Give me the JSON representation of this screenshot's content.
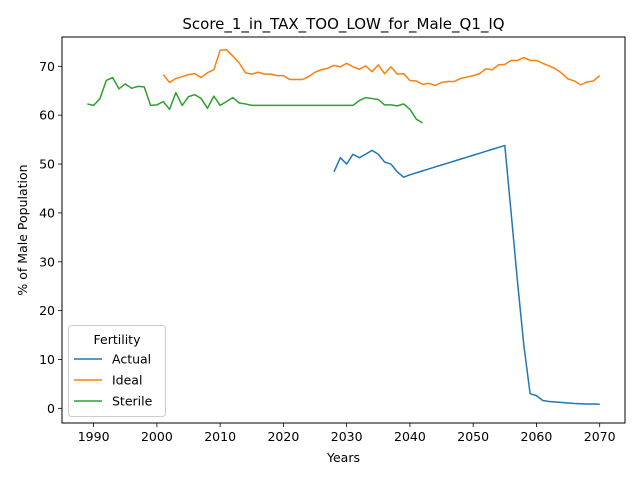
{
  "chart_data": {
    "type": "line",
    "title": "Score_1_in_TAX_TOO_LOW_for_Male_Q1_IQ",
    "xlabel": "Years",
    "ylabel": "% of Male Population",
    "xlim": [
      1985,
      2074
    ],
    "ylim": [
      -3,
      76
    ],
    "xticks": [
      1990,
      2000,
      2010,
      2020,
      2030,
      2040,
      2050,
      2060,
      2070
    ],
    "yticks": [
      0,
      10,
      20,
      30,
      40,
      50,
      60,
      70
    ],
    "legend": {
      "title": "Fertility",
      "position": "lower-left"
    },
    "series": [
      {
        "name": "Actual",
        "color": "#1f77b4",
        "x": [
          2028,
          2029,
          2030,
          2031,
          2032,
          2033,
          2034,
          2035,
          2036,
          2037,
          2038,
          2039,
          2040,
          2041,
          2042,
          2043,
          2044,
          2045,
          2046,
          2047,
          2048,
          2049,
          2050,
          2051,
          2052,
          2053,
          2054,
          2055,
          2056,
          2057,
          2058,
          2059,
          2060,
          2061,
          2062,
          2063,
          2064,
          2065,
          2066,
          2067,
          2068,
          2069,
          2070
        ],
        "values": [
          48.4,
          51.3,
          50.0,
          52.0,
          51.3,
          52.0,
          52.8,
          52.0,
          50.4,
          50.0,
          48.4,
          47.3,
          47.8,
          48.2,
          48.6,
          49.0,
          49.4,
          49.8,
          50.2,
          50.6,
          51.0,
          51.4,
          51.8,
          52.2,
          52.6,
          53.0,
          53.4,
          53.8,
          40.0,
          26.0,
          13.0,
          3.0,
          2.6,
          1.6,
          1.4,
          1.3,
          1.2,
          1.1,
          1.0,
          0.95,
          0.9,
          0.88,
          0.85
        ]
      },
      {
        "name": "Ideal",
        "color": "#ff7f0e",
        "x": [
          2001,
          2002,
          2003,
          2004,
          2005,
          2006,
          2007,
          2008,
          2009,
          2010,
          2011,
          2012,
          2013,
          2014,
          2015,
          2016,
          2017,
          2018,
          2019,
          2020,
          2021,
          2022,
          2023,
          2024,
          2025,
          2026,
          2027,
          2028,
          2029,
          2030,
          2031,
          2032,
          2033,
          2034,
          2035,
          2036,
          2037,
          2038,
          2039,
          2040,
          2041,
          2042,
          2043,
          2044,
          2045,
          2046,
          2047,
          2048,
          2049,
          2050,
          2051,
          2052,
          2053,
          2054,
          2055,
          2056,
          2057,
          2058,
          2059,
          2060,
          2061,
          2062,
          2063,
          2064,
          2065,
          2066,
          2067,
          2068,
          2069,
          2070
        ],
        "values": [
          68.3,
          66.7,
          67.5,
          67.9,
          68.3,
          68.5,
          67.7,
          68.7,
          69.3,
          73.3,
          73.4,
          72.1,
          70.7,
          68.7,
          68.4,
          68.8,
          68.4,
          68.4,
          68.1,
          68.1,
          67.3,
          67.3,
          67.3,
          67.9,
          68.8,
          69.3,
          69.6,
          70.2,
          69.9,
          70.6,
          69.9,
          69.4,
          70.1,
          68.9,
          70.3,
          68.5,
          69.9,
          68.4,
          68.5,
          67.1,
          67.0,
          66.3,
          66.5,
          66.1,
          66.7,
          66.9,
          66.9,
          67.5,
          67.8,
          68.1,
          68.5,
          69.5,
          69.3,
          70.3,
          70.4,
          71.2,
          71.2,
          71.8,
          71.2,
          71.2,
          70.6,
          70.1,
          69.5,
          68.6,
          67.4,
          67.0,
          66.2,
          66.8,
          67.0,
          68.1
        ]
      },
      {
        "name": "Sterile",
        "color": "#2ca02c",
        "x": [
          1989,
          1990,
          1991,
          1992,
          1993,
          1994,
          1995,
          1996,
          1997,
          1998,
          1999,
          2000,
          2001,
          2002,
          2003,
          2004,
          2005,
          2006,
          2007,
          2008,
          2009,
          2010,
          2011,
          2012,
          2013,
          2014,
          2015,
          2016,
          2017,
          2018,
          2019,
          2020,
          2021,
          2022,
          2023,
          2024,
          2025,
          2026,
          2027,
          2028,
          2029,
          2030,
          2031,
          2032,
          2033,
          2034,
          2035,
          2036,
          2037,
          2038,
          2039,
          2040,
          2041,
          2042
        ],
        "values": [
          62.3,
          62.0,
          63.4,
          67.1,
          67.7,
          65.4,
          66.4,
          65.5,
          65.9,
          65.8,
          62.0,
          62.1,
          62.8,
          61.2,
          64.6,
          62.0,
          63.8,
          64.2,
          63.4,
          61.4,
          63.9,
          62.0,
          62.8,
          63.6,
          62.5,
          62.3,
          62.0,
          62.0,
          62.0,
          62.0,
          62.0,
          62.0,
          62.0,
          62.0,
          62.0,
          62.0,
          62.0,
          62.0,
          62.0,
          62.0,
          62.0,
          62.0,
          62.0,
          63.0,
          63.6,
          63.4,
          63.2,
          62.1,
          62.1,
          61.9,
          62.3,
          61.2,
          59.2,
          58.4
        ]
      }
    ]
  }
}
